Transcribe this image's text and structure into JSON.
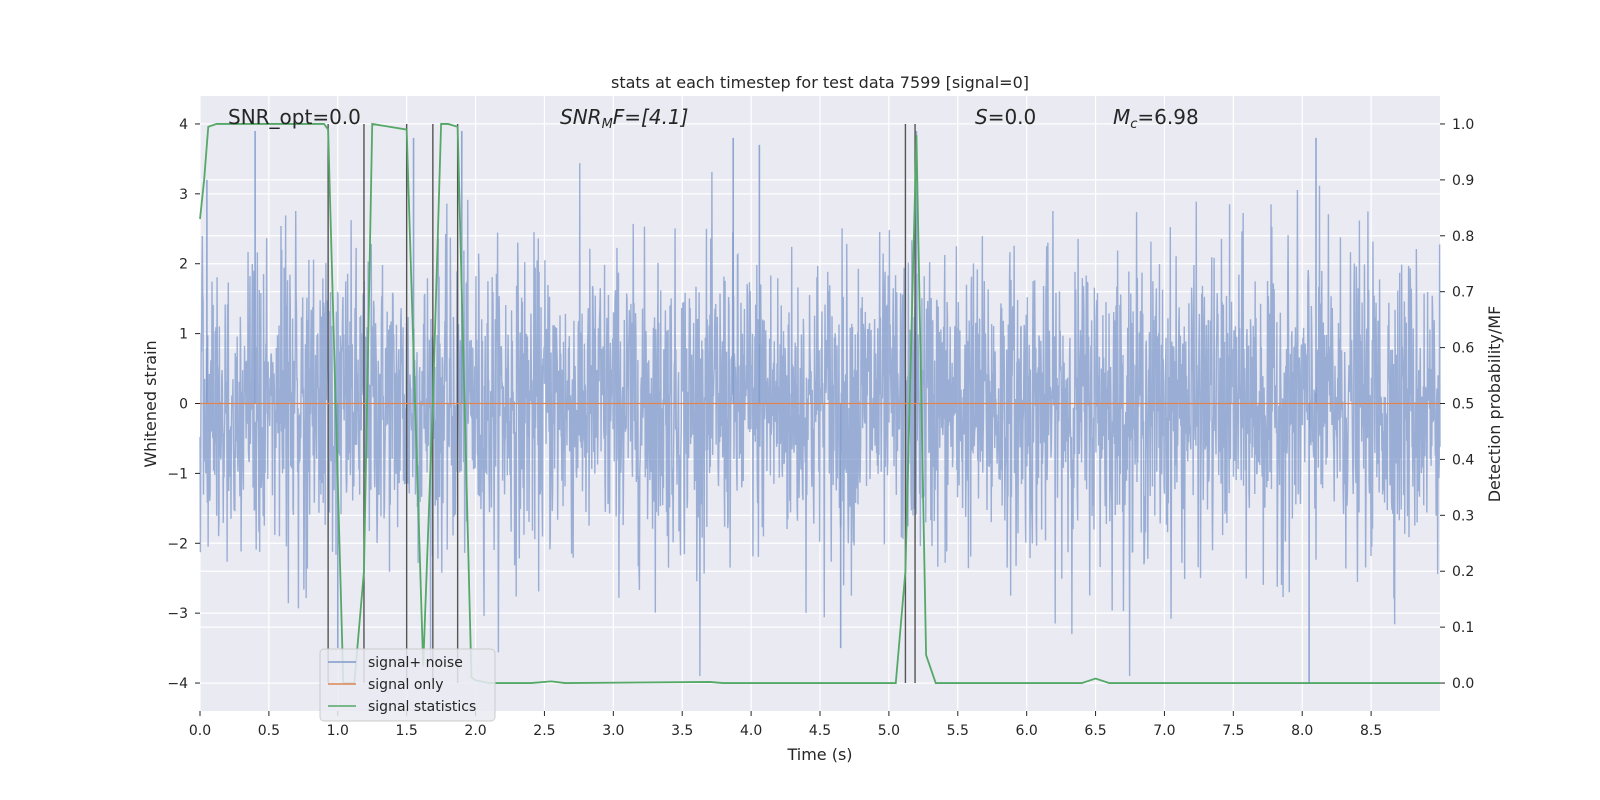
{
  "chart_data": {
    "type": "line",
    "title": "stats at each timestep for test data 7599 [signal=0]",
    "xlabel": "Time (s)",
    "ylabel_left": "Whitened strain",
    "ylabel_right": "Detection probability/MF",
    "xlim": [
      0,
      9.0
    ],
    "ylim_left": [
      -4.4,
      4.4
    ],
    "ylim_right": [
      -0.05,
      1.05
    ],
    "x_ticks": [
      0.0,
      0.5,
      1.0,
      1.5,
      2.0,
      2.5,
      3.0,
      3.5,
      4.0,
      4.5,
      5.0,
      5.5,
      6.0,
      6.5,
      7.0,
      7.5,
      8.0,
      8.5
    ],
    "x_tick_labels": [
      "0.0",
      "0.5",
      "1.0",
      "1.5",
      "2.0",
      "2.5",
      "3.0",
      "3.5",
      "4.0",
      "4.5",
      "5.0",
      "5.5",
      "6.0",
      "6.5",
      "7.0",
      "7.5",
      "8.0",
      "8.5"
    ],
    "y_left_ticks": [
      -4,
      -3,
      -2,
      -1,
      0,
      1,
      2,
      3,
      4
    ],
    "y_left_tick_labels": [
      "−4",
      "−3",
      "−2",
      "−1",
      "0",
      "1",
      "2",
      "3",
      "4"
    ],
    "y_right_ticks": [
      0.0,
      0.1,
      0.2,
      0.3,
      0.4,
      0.5,
      0.6,
      0.7,
      0.8,
      0.9,
      1.0
    ],
    "y_right_tick_labels": [
      "0.0",
      "0.1",
      "0.2",
      "0.3",
      "0.4",
      "0.5",
      "0.6",
      "0.7",
      "0.8",
      "0.9",
      "1.0"
    ],
    "grid": true,
    "legend_position": "lower-left",
    "annotations": {
      "snr_opt": "SNR_opt=0.0",
      "snr_mf_main": "SNR",
      "snr_mf_sub": "M",
      "snr_mf_rest": "F=[4.1]",
      "s_main": "S",
      "s_rest": "=0.0",
      "mc_main": "M",
      "mc_sub": "c",
      "mc_rest": "=6.98"
    },
    "series": [
      {
        "name": "signal+ noise",
        "color": "#7f9acb",
        "axis": "left",
        "description_values": "whitened noise, roughly within ±2 with peaks to about ±4",
        "envelope_peaks": [
          {
            "x": 0.05,
            "y": 3.2
          },
          {
            "x": 0.4,
            "y": 3.9
          },
          {
            "x": 1.0,
            "y": -3.5
          },
          {
            "x": 1.55,
            "y": 3.8
          },
          {
            "x": 1.9,
            "y": 3.9
          },
          {
            "x": 3.87,
            "y": 3.8
          },
          {
            "x": 4.06,
            "y": 3.7
          },
          {
            "x": 4.65,
            "y": -3.5
          },
          {
            "x": 5.2,
            "y": 3.9
          },
          {
            "x": 8.05,
            "y": -4.0
          },
          {
            "x": 8.1,
            "y": 3.8
          }
        ]
      },
      {
        "name": "signal only",
        "color": "#dd8452",
        "axis": "left",
        "x": [
          0.0,
          9.0
        ],
        "y": [
          0.0,
          0.0
        ]
      },
      {
        "name": "signal statistics",
        "color": "#55a868",
        "axis": "right",
        "x": [
          0.0,
          0.03,
          0.06,
          0.12,
          0.9,
          0.93,
          1.04,
          1.12,
          1.19,
          1.25,
          1.5,
          1.62,
          1.69,
          1.75,
          1.8,
          1.87,
          1.97,
          2.0,
          2.1,
          2.4,
          2.55,
          2.65,
          3.7,
          3.8,
          5.05,
          5.12,
          5.2,
          5.27,
          5.34,
          6.4,
          6.5,
          6.6,
          9.0
        ],
        "y": [
          0.83,
          0.9,
          0.995,
          1.0,
          1.0,
          0.99,
          0.0,
          0.0,
          0.2,
          1.0,
          0.99,
          0.03,
          0.5,
          1.0,
          1.0,
          0.995,
          0.01,
          0.005,
          0.0,
          0.0,
          0.003,
          0.0,
          0.002,
          0.0,
          0.0,
          0.2,
          0.98,
          0.05,
          0.0,
          0.0,
          0.008,
          0.0,
          0.0
        ]
      }
    ],
    "vertical_markers": [
      0.93,
      1.19,
      1.5,
      1.69,
      1.87,
      5.12,
      5.19
    ]
  }
}
